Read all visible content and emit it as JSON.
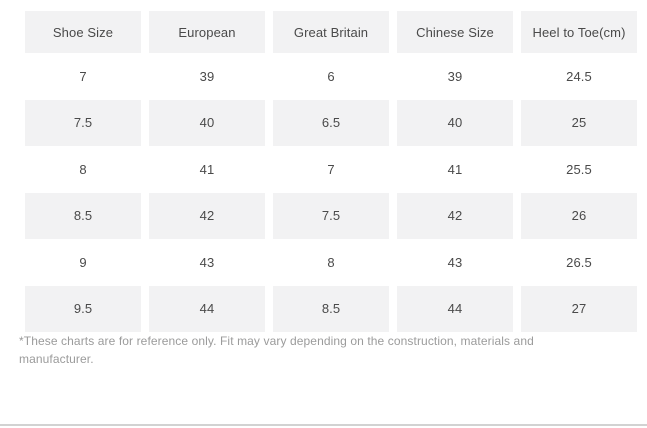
{
  "colors": {
    "page_background": "#ffffff",
    "row_stripe_background": "#f2f2f3",
    "cell_text": "#4a4a4a",
    "footnote_text": "#9b9b9b",
    "bottom_divider": "#d2d2d2"
  },
  "chart_data": {
    "type": "table",
    "title": "",
    "columns": [
      "Shoe Size",
      "European",
      "Great Britain",
      "Chinese Size",
      "Heel to Toe(cm)"
    ],
    "rows": [
      [
        "7",
        "39",
        "6",
        "39",
        "24.5"
      ],
      [
        "7.5",
        "40",
        "6.5",
        "40",
        "25"
      ],
      [
        "8",
        "41",
        "7",
        "41",
        "25.5"
      ],
      [
        "8.5",
        "42",
        "7.5",
        "42",
        "26"
      ],
      [
        "9",
        "43",
        "8",
        "43",
        "26.5"
      ],
      [
        "9.5",
        "44",
        "8.5",
        "44",
        "27"
      ]
    ],
    "layout_hints": {
      "striped_rows": "header and every second data row shaded light gray",
      "column_gaps": "white vertical gutters between columns",
      "cell_alignment": "center"
    }
  },
  "footnote": "*These charts are for reference only. Fit may vary depending on the construction, materials and manufacturer."
}
